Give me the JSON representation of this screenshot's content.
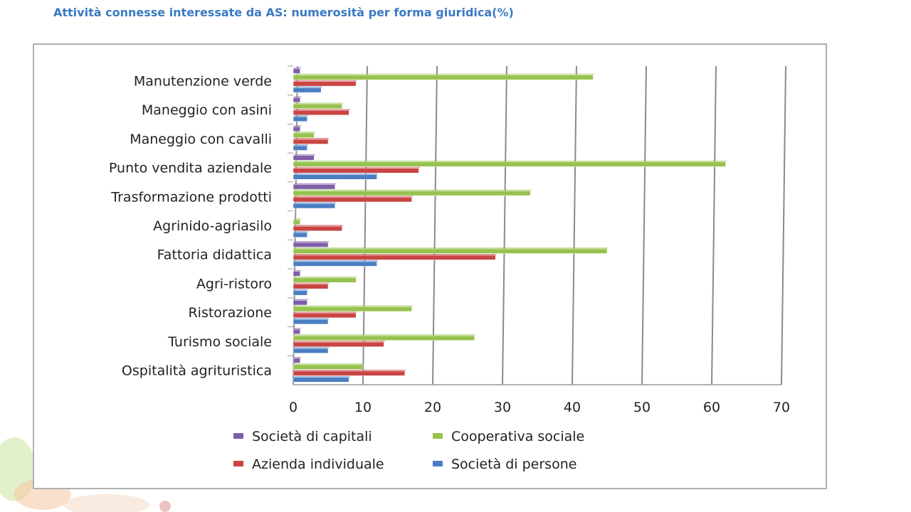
{
  "title": "Attività connesse interessate da AS: numerosità per forma giuridica(%)",
  "chart_data": {
    "type": "bar",
    "orientation": "horizontal",
    "categories": [
      "Manutenzione verde",
      "Maneggio con asini",
      "Maneggio con cavalli",
      "Punto vendita aziendale",
      "Trasformazione prodotti",
      "Agrinido-agriasilo",
      "Fattoria didattica",
      "Agri-ristoro",
      "Ristorazione",
      "Turismo sociale",
      "Ospitalità agrituristica"
    ],
    "series": [
      {
        "name": "Società di capitali",
        "color": "#7f5fa8",
        "values": [
          1,
          1,
          1,
          3,
          6,
          0,
          5,
          1,
          2,
          1,
          1
        ]
      },
      {
        "name": "Cooperativa sociale",
        "color": "#96c24e",
        "values": [
          43,
          7,
          3,
          62,
          34,
          1,
          45,
          9,
          17,
          26,
          10
        ]
      },
      {
        "name": "Azienda individuale",
        "color": "#c94543",
        "values": [
          9,
          8,
          5,
          18,
          17,
          7,
          29,
          5,
          9,
          13,
          16
        ]
      },
      {
        "name": "Società di persone",
        "color": "#4a7ec2",
        "values": [
          4,
          2,
          2,
          12,
          6,
          2,
          12,
          2,
          5,
          5,
          8
        ]
      }
    ],
    "xlim": [
      0,
      70
    ],
    "xticks": [
      "0",
      "10",
      "20",
      "30",
      "40",
      "50",
      "60",
      "70"
    ],
    "grid": true,
    "legend_position": "bottom",
    "legend_order": [
      [
        "Società di capitali",
        "Cooperativa sociale"
      ],
      [
        "Azienda individuale",
        "Società di persone"
      ]
    ]
  }
}
